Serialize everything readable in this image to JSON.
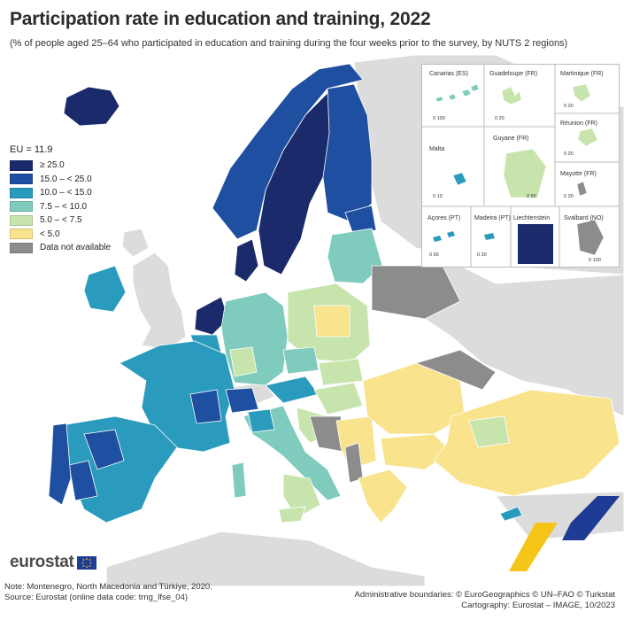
{
  "title": "Participation rate in education and training, 2022",
  "subtitle": "(% of people aged 25–64 who participated in education and training during the four weeks prior to the survey, by NUTS 2 regions)",
  "legend": {
    "eu_value": "EU = 11.9",
    "classes": [
      {
        "label": "≥ 25.0",
        "color": "#1b2a6b"
      },
      {
        "label": "15.0 – < 25.0",
        "color": "#1f4fa0"
      },
      {
        "label": "10.0 – < 15.0",
        "color": "#2a9bbd"
      },
      {
        "label": "7.5 – < 10.0",
        "color": "#7fcbbd"
      },
      {
        "label": "5.0 – < 7.5",
        "color": "#c8e4ad"
      },
      {
        "label": "< 5.0",
        "color": "#f9e38d"
      },
      {
        "label": "Data not available",
        "color": "#8c8c8c"
      }
    ]
  },
  "colors": {
    "non_eu_land": "#dcdcdc",
    "sea": "#ffffff",
    "borders": "#ffffff",
    "logo_flag": "#1e3c94"
  },
  "insets": {
    "canarias": "Canarias (ES)",
    "guadeloupe": "Guadeloupe (FR)",
    "martinique": "Martinique (FR)",
    "reunion": "Réunion (FR)",
    "malta": "Malta",
    "guyane": "Guyane (FR)",
    "mayotte": "Mayotte (FR)",
    "acores": "Açores (PT)",
    "madeira": "Madeira (PT)",
    "liechtenstein": "Liechtenstein",
    "svalbard": "Svalbard (NO)",
    "scale_canarias": "0   100",
    "scale_guadeloupe": "0   20",
    "scale_martinique": "0   20",
    "scale_reunion": "0   20",
    "scale_malta": "0   10",
    "scale_guyane": "0   50",
    "scale_mayotte": "0   20",
    "scale_acores": "0   50",
    "scale_madeira": "0   20",
    "scale_svalbard": "0 100"
  },
  "logo": {
    "text": "eurostat"
  },
  "note": {
    "line1": "Note: Montenegro, North Macedonia and Türkiye, 2020.",
    "line2": "Source: Eurostat (online data code: trng_lfse_04)"
  },
  "credits": {
    "line1": "Administrative boundaries: © EuroGeographics © UN–FAO © Turkstat",
    "line2": "Cartography: Eurostat – IMAGE, 10/2023"
  }
}
